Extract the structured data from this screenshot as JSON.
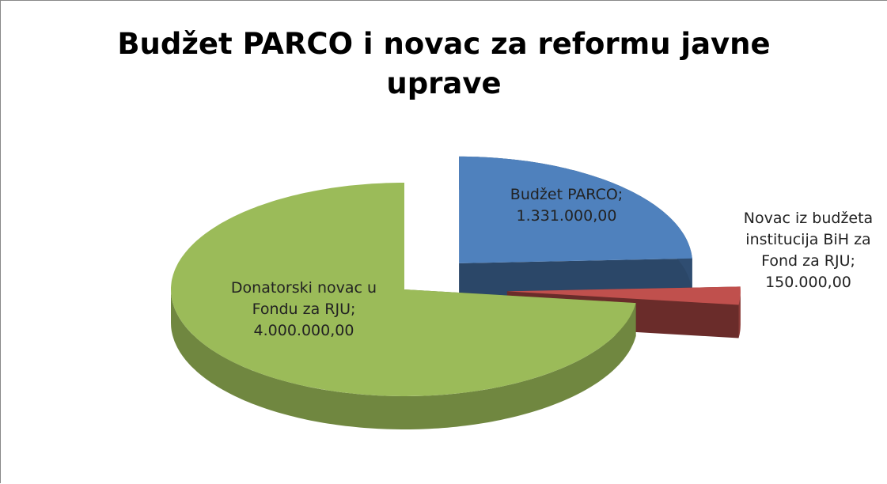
{
  "chart_data": {
    "type": "pie3d",
    "title": "Budžet PARCO i novac za reformu javne uprave",
    "categories": [
      "Budžet PARCO",
      "Novac iz budžeta institucija BiH za Fond za RJU",
      "Donatorski novac u Fondu za RJU"
    ],
    "values": [
      1331000,
      150000,
      4000000
    ],
    "value_labels": [
      "1.331.000,00",
      "150.000,00",
      "4.000.000,00"
    ],
    "label_separator": ";",
    "colors": [
      "#4f81bd",
      "#c0504d",
      "#9bbb59"
    ]
  }
}
